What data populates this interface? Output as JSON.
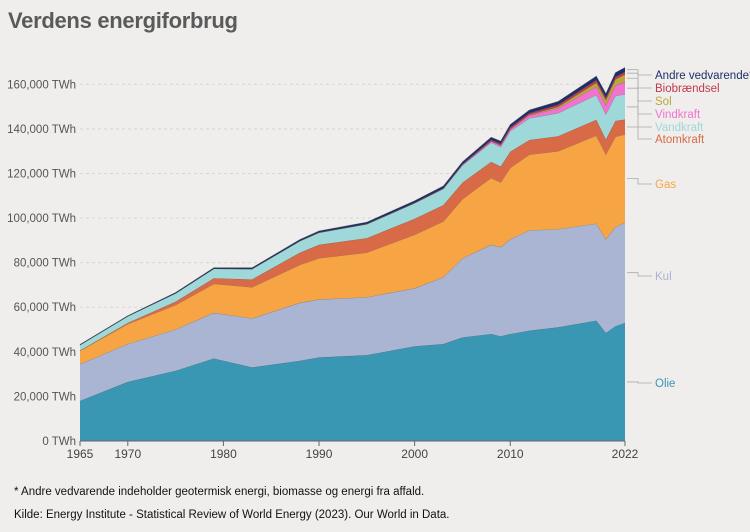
{
  "page": {
    "title": "Verdens energiforbrug",
    "footnote": "* Andre vedvarende indeholder geotermisk energi, biomasse og energi fra affald.",
    "source": "Kilde: Energy Institute - Statistical Review of World Energy (2023). Our World in Data."
  },
  "chart_data": {
    "type": "area",
    "stacked": true,
    "title": "Verdens energiforbrug",
    "xlabel": "",
    "ylabel": "",
    "xlim": [
      1965,
      2022
    ],
    "ylim": [
      0,
      170000
    ],
    "grid": true,
    "legend_placement": "right (labels at series ends)",
    "y_ticks": [
      0,
      20000,
      40000,
      60000,
      80000,
      100000,
      120000,
      140000,
      160000
    ],
    "y_tick_labels": [
      "0 TWh",
      "20,000 TWh",
      "40,000 TWh",
      "60,000 TWh",
      "80,000 TWh",
      "100,000 TWh",
      "120,000 TWh",
      "140,000 TWh",
      "160,000 TWh"
    ],
    "x_ticks": [
      1965,
      1970,
      1980,
      1990,
      2000,
      2010,
      2022
    ],
    "x_tick_labels": [
      "1965",
      "1970",
      "1980",
      "1990",
      "2000",
      "2010",
      "2022"
    ],
    "x": [
      1965,
      1970,
      1975,
      1979,
      1983,
      1988,
      1990,
      1995,
      2000,
      2003,
      2005,
      2008,
      2009,
      2010,
      2012,
      2015,
      2019,
      2020,
      2021,
      2022
    ],
    "series": [
      {
        "name": "Olie",
        "color": "#3a97b4",
        "values": [
          18000,
          26500,
          31500,
          37000,
          33000,
          36000,
          37500,
          38500,
          42500,
          43500,
          46500,
          48000,
          47000,
          48000,
          49500,
          51000,
          54000,
          48500,
          51500,
          53000
        ]
      },
      {
        "name": "Kul",
        "color": "#aab4d3",
        "values": [
          16500,
          17000,
          18500,
          20500,
          22000,
          26000,
          26000,
          26000,
          26000,
          30000,
          35500,
          40000,
          40000,
          42500,
          45000,
          44000,
          43500,
          42000,
          44500,
          45000
        ]
      },
      {
        "name": "Gas",
        "color": "#f7a444",
        "values": [
          6000,
          9000,
          11000,
          13000,
          14000,
          17000,
          18500,
          20000,
          24000,
          25000,
          26500,
          30000,
          29000,
          32000,
          34000,
          35000,
          39500,
          38000,
          40500,
          39500
        ]
      },
      {
        "name": "Atomkraft",
        "color": "#d86a48",
        "values": [
          100,
          500,
          1500,
          2500,
          3500,
          5500,
          6000,
          6500,
          7200,
          7300,
          7400,
          7200,
          7100,
          7300,
          6500,
          6700,
          7100,
          6800,
          7100,
          6700
        ]
      },
      {
        "name": "Vandkraft",
        "color": "#9fd8d8",
        "values": [
          2500,
          3000,
          3800,
          4300,
          4700,
          5200,
          5500,
          6300,
          7000,
          7300,
          7800,
          8700,
          8800,
          9200,
          9800,
          10400,
          11100,
          11300,
          11200,
          11300
        ]
      },
      {
        "name": "Vindkraft",
        "color": "#f272cf",
        "values": [
          0,
          0,
          0,
          0,
          0,
          0,
          10,
          20,
          80,
          180,
          270,
          600,
          750,
          900,
          1300,
          2100,
          3700,
          4100,
          4700,
          5500
        ]
      },
      {
        "name": "Sol",
        "color": "#b8a838",
        "values": [
          0,
          0,
          0,
          0,
          0,
          0,
          0,
          0,
          2,
          4,
          8,
          30,
          50,
          90,
          270,
          680,
          1800,
          2200,
          2700,
          3400
        ]
      },
      {
        "name": "Biobrændsel",
        "color": "#c13a4b",
        "values": [
          0,
          0,
          0,
          20,
          50,
          100,
          110,
          130,
          120,
          150,
          250,
          560,
          610,
          690,
          720,
          920,
          1160,
          1090,
          1120,
          1150
        ]
      },
      {
        "name": "Andre vedvarende*",
        "color": "#1d2f6a",
        "values": [
          170,
          200,
          300,
          400,
          470,
          560,
          600,
          720,
          860,
          920,
          1000,
          1150,
          1200,
          1260,
          1380,
          1500,
          1800,
          1850,
          1900,
          2000
        ]
      }
    ]
  }
}
